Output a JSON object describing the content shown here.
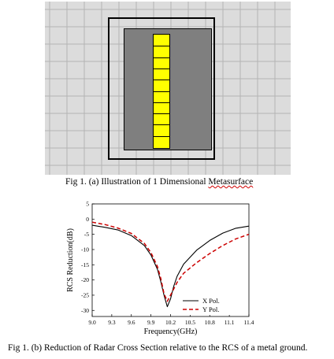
{
  "figure_a": {
    "caption_prefix": "Fig 1. (a) Illustration of 1 Dimensional ",
    "caption_marked_word": "Metasurface",
    "unit_cell_count": 10,
    "colors": {
      "background": "#dcdcdc",
      "ground": "#7f7f7f",
      "strip": "#ffff00",
      "frame": "#000000"
    }
  },
  "figure_b": {
    "caption": "Fig 1. (b) Reduction of Radar Cross Section relative to the RCS of a metal ground."
  },
  "chart_data": {
    "type": "line",
    "title": "",
    "xlabel": "Frequency(GHz)",
    "ylabel": "RCS Reduction(dB)",
    "xlim": [
      9.0,
      11.4
    ],
    "ylim": [
      -32,
      5
    ],
    "x_ticks": [
      9.0,
      9.3,
      9.6,
      9.9,
      10.2,
      10.5,
      10.8,
      11.1,
      11.4
    ],
    "x_tick_labels": [
      "9.0",
      "9.3",
      "9.6",
      "9.9",
      "10.2",
      "10.5",
      "10.8",
      "11.1",
      "11.4"
    ],
    "y_ticks": [
      5,
      0,
      -5,
      -10,
      -15,
      -20,
      -25,
      -30
    ],
    "y_tick_labels": [
      "5",
      "0",
      "-5",
      "-10",
      "-15",
      "-20",
      "-25",
      "-30"
    ],
    "grid": false,
    "legend_position": "bottom-right",
    "series": [
      {
        "name": "X Pol.",
        "color": "#000000",
        "dash": "solid",
        "x": [
          9.0,
          9.2,
          9.4,
          9.6,
          9.8,
          9.9,
          10.0,
          10.05,
          10.1,
          10.15,
          10.2,
          10.25,
          10.3,
          10.4,
          10.6,
          10.8,
          11.0,
          11.2,
          11.4
        ],
        "y": [
          -2.0,
          -2.7,
          -3.6,
          -5.4,
          -8.7,
          -11.8,
          -16.5,
          -20.5,
          -25.0,
          -28.8,
          -26.2,
          -22.0,
          -18.8,
          -14.8,
          -10.2,
          -7.0,
          -4.6,
          -3.0,
          -2.3
        ]
      },
      {
        "name": "Y Pol.",
        "color": "#cc0000",
        "dash": "dashed",
        "x": [
          9.0,
          9.2,
          9.4,
          9.6,
          9.8,
          9.9,
          10.0,
          10.05,
          10.1,
          10.15,
          10.2,
          10.3,
          10.4,
          10.6,
          10.8,
          11.0,
          11.2,
          11.4
        ],
        "y": [
          -1.0,
          -1.8,
          -3.0,
          -4.7,
          -8.0,
          -11.0,
          -15.6,
          -19.5,
          -24.5,
          -27.0,
          -25.0,
          -20.8,
          -17.8,
          -14.3,
          -11.3,
          -8.7,
          -6.5,
          -5.0
        ]
      }
    ]
  }
}
